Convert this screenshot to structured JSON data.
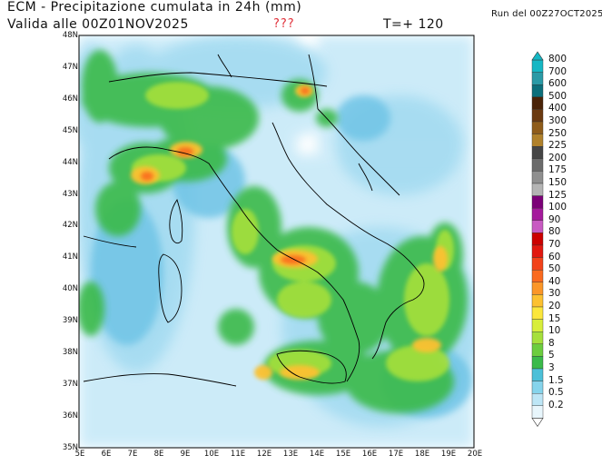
{
  "header": {
    "title": "ECM - Precipitazione cumulata in 24h (mm)",
    "valid": "Valida alle 00Z01NOV2025",
    "question_marks": "???",
    "forecast_step": "T=+ 120",
    "run": "Run del 00Z27OCT2025"
  },
  "axes": {
    "lat_labels": [
      "48N",
      "47N",
      "46N",
      "45N",
      "44N",
      "43N",
      "42N",
      "41N",
      "40N",
      "39N",
      "38N",
      "37N",
      "36N",
      "35N"
    ],
    "lon_labels": [
      "5E",
      "6E",
      "7E",
      "8E",
      "9E",
      "10E",
      "11E",
      "12E",
      "13E",
      "14E",
      "15E",
      "16E",
      "17E",
      "18E",
      "19E",
      "20E"
    ]
  },
  "legend": {
    "levels": [
      "800",
      "700",
      "600",
      "500",
      "400",
      "300",
      "250",
      "225",
      "200",
      "175",
      "150",
      "125",
      "100",
      "90",
      "80",
      "70",
      "60",
      "50",
      "40",
      "30",
      "20",
      "15",
      "10",
      "8",
      "5",
      "3",
      "1.5",
      "0.5",
      "0.2"
    ],
    "colors": [
      "#15b7c4",
      "#2a9aa6",
      "#0c6f7b",
      "#4a2308",
      "#6b3a10",
      "#8f5c1a",
      "#b0812b",
      "#454545",
      "#6b6b6b",
      "#8f8f8f",
      "#b4b4b4",
      "#7c0078",
      "#a51a9c",
      "#c85ac2",
      "#cc0000",
      "#e2170f",
      "#f2421a",
      "#fa6a1e",
      "#fb9628",
      "#fcc130",
      "#fbe73c",
      "#d8ee3b",
      "#a6e03b",
      "#6ccd3e",
      "#3aba4a",
      "#4cc0d8",
      "#86d4ec",
      "#bde6f6",
      "#e8f6fc"
    ]
  }
}
